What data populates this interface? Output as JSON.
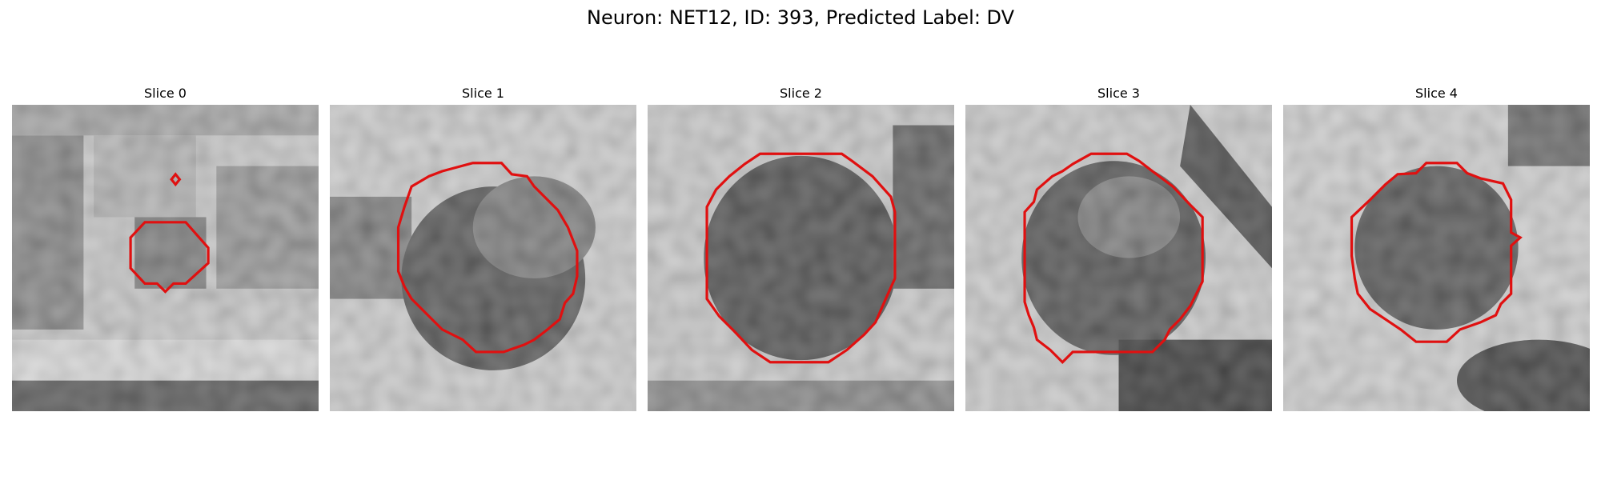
{
  "figure": {
    "title": "Neuron: NET12, ID: 393, Predicted Label: DV",
    "panels": [
      {
        "title": "Slice 0"
      },
      {
        "title": "Slice 1"
      },
      {
        "title": "Slice 2"
      },
      {
        "title": "Slice 3"
      },
      {
        "title": "Slice 4"
      }
    ],
    "contour_color": "#e01010",
    "colormap": "grayscale"
  }
}
